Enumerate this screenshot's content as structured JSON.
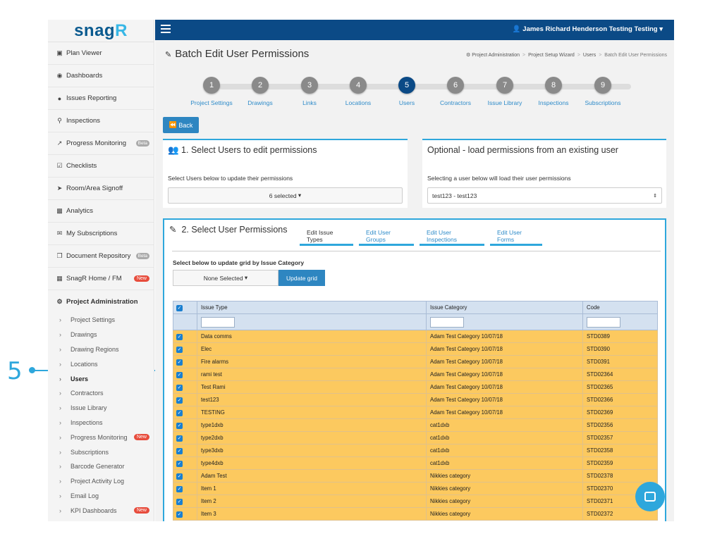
{
  "callout": {
    "number": "5"
  },
  "sidebar": {
    "logo": "snag",
    "logo_accent": "R",
    "items": [
      {
        "label": "Plan Viewer",
        "icon": "image-icon"
      },
      {
        "label": "Dashboards",
        "icon": "dashboard-icon"
      },
      {
        "label": "Issues Reporting",
        "icon": "map-marker-icon"
      },
      {
        "label": "Inspections",
        "icon": "search-icon"
      },
      {
        "label": "Progress Monitoring",
        "icon": "line-chart-icon",
        "badge": "Beta"
      },
      {
        "label": "Checklists",
        "icon": "checkbox-icon"
      },
      {
        "label": "Room/Area Signoff",
        "icon": "location-arrow-icon"
      },
      {
        "label": "Analytics",
        "icon": "bar-chart-icon"
      },
      {
        "label": "My Subscriptions",
        "icon": "envelope-icon"
      },
      {
        "label": "Document Repository",
        "icon": "copy-icon",
        "badge": "Beta"
      },
      {
        "label": "SnagR Home / FM",
        "icon": "building-icon",
        "badge": "New"
      },
      {
        "label": "Project Administration",
        "icon": "gears-icon"
      }
    ],
    "sub_items": [
      {
        "label": "Project Settings"
      },
      {
        "label": "Drawings"
      },
      {
        "label": "Drawing Regions"
      },
      {
        "label": "Locations"
      },
      {
        "label": "Users",
        "active": true
      },
      {
        "label": "Contractors"
      },
      {
        "label": "Issue Library"
      },
      {
        "label": "Inspections"
      },
      {
        "label": "Progress Monitoring",
        "badge": "New"
      },
      {
        "label": "Subscriptions"
      },
      {
        "label": "Barcode Generator"
      },
      {
        "label": "Project Activity Log"
      },
      {
        "label": "Email Log"
      },
      {
        "label": "KPI Dashboards",
        "badge": "New"
      }
    ]
  },
  "topbar": {
    "user": "James Richard Henderson Testing Testing"
  },
  "header": {
    "title": "Batch Edit User Permissions",
    "breadcrumbs": [
      "Project Administration",
      "Project Setup Wizard",
      "Users",
      "Batch Edit User Permissions"
    ]
  },
  "wizard": {
    "active_step": 5,
    "steps": [
      {
        "num": "1",
        "label": "Project Settings"
      },
      {
        "num": "2",
        "label": "Drawings"
      },
      {
        "num": "3",
        "label": "Links"
      },
      {
        "num": "4",
        "label": "Locations"
      },
      {
        "num": "5",
        "label": "Users"
      },
      {
        "num": "6",
        "label": "Contractors"
      },
      {
        "num": "7",
        "label": "Issue Library"
      },
      {
        "num": "8",
        "label": "Inspections"
      },
      {
        "num": "9",
        "label": "Subscriptions"
      }
    ]
  },
  "back_button": "Back",
  "section1": {
    "title": "1. Select Users to edit permissions",
    "hint": "Select Users below to update their permissions",
    "dropdown": "6 selected"
  },
  "optional": {
    "title": "Optional - load permissions from an existing user",
    "hint": "Selecting a user below will load their user permissions",
    "select_value": "test123 - test123"
  },
  "section2": {
    "title": "2. Select User Permissions",
    "tabs": [
      "Edit Issue Types",
      "Edit User Groups",
      "Edit User Inspections",
      "Edit User Forms"
    ],
    "active_tab": 0,
    "grid_label": "Select below to update grid by Issue Category",
    "category_dropdown": "None Selected",
    "update_button": "Update grid",
    "columns": [
      "Issue Type",
      "Issue Category",
      "Code"
    ],
    "rows": [
      {
        "type": "Data comms",
        "category": "Adam Test Category 10/07/18",
        "code": "STD0389"
      },
      {
        "type": "Elec",
        "category": "Adam Test Category 10/07/18",
        "code": "STD0390"
      },
      {
        "type": "Fire alarms",
        "category": "Adam Test Category 10/07/18",
        "code": "STD0391"
      },
      {
        "type": "rami test",
        "category": "Adam Test Category 10/07/18",
        "code": "STD02364"
      },
      {
        "type": "Test Rami",
        "category": "Adam Test Category 10/07/18",
        "code": "STD02365"
      },
      {
        "type": "test123",
        "category": "Adam Test Category 10/07/18",
        "code": "STD02366"
      },
      {
        "type": "TESTING",
        "category": "Adam Test Category 10/07/18",
        "code": "STD02369"
      },
      {
        "type": "type1dxb",
        "category": "cat1dxb",
        "code": "STD02356"
      },
      {
        "type": "type2dxb",
        "category": "cat1dxb",
        "code": "STD02357"
      },
      {
        "type": "type3dxb",
        "category": "cat1dxb",
        "code": "STD02358"
      },
      {
        "type": "type4dxb",
        "category": "cat1dxb",
        "code": "STD02359"
      },
      {
        "type": "Adam Test",
        "category": "Nikkies category",
        "code": "STD02378"
      },
      {
        "type": "Item 1",
        "category": "Nikkies category",
        "code": "STD02370"
      },
      {
        "type": "Item 2",
        "category": "Nikkies category",
        "code": "STD02371"
      },
      {
        "type": "Item 3",
        "category": "Nikkies category",
        "code": "STD02372"
      }
    ]
  },
  "colors": {
    "nav": "#0b4a86",
    "accent": "#2ea7dc",
    "row": "#fcc95f",
    "header_row": "#d4e1f0",
    "badge_new": "#e74c3c"
  }
}
